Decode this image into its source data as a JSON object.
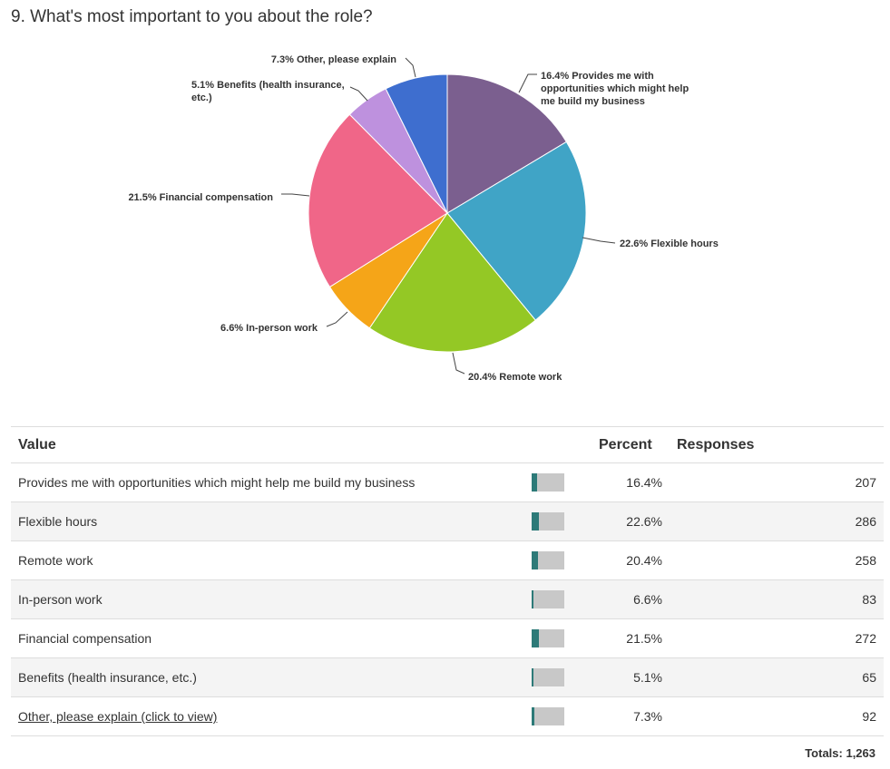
{
  "question": "9. What's most important to you about the role?",
  "chart_data": {
    "type": "pie",
    "slices": [
      {
        "name": "Provides me with opportunities which might help me build my business",
        "percent": 16.4,
        "label": [
          "16.4% Provides me with",
          "opportunities which might help",
          "me build my business"
        ],
        "color": "#7b5f8f"
      },
      {
        "name": "Flexible hours",
        "percent": 22.6,
        "label": [
          "22.6% Flexible hours"
        ],
        "color": "#40a4c6"
      },
      {
        "name": "Remote work",
        "percent": 20.4,
        "label": [
          "20.4% Remote work"
        ],
        "color": "#94c825"
      },
      {
        "name": "In-person work",
        "percent": 6.6,
        "label": [
          "6.6% In-person work"
        ],
        "color": "#f5a518"
      },
      {
        "name": "Financial compensation",
        "percent": 21.5,
        "label": [
          "21.5% Financial compensation"
        ],
        "color": "#f06688"
      },
      {
        "name": "Benefits (health insurance, etc.)",
        "percent": 5.1,
        "label": [
          "5.1% Benefits (health insurance,",
          "etc.)"
        ],
        "color": "#be91de"
      },
      {
        "name": "Other, please explain",
        "percent": 7.3,
        "label": [
          "7.3% Other, please explain"
        ],
        "color": "#3e6ecf"
      }
    ]
  },
  "table": {
    "headers": {
      "value": "Value",
      "percent": "Percent",
      "responses": "Responses"
    },
    "rows": [
      {
        "value": "Provides me with opportunities which might help me build my business",
        "percent": "16.4%",
        "fraction": 0.164,
        "responses": "207",
        "link": false
      },
      {
        "value": "Flexible hours",
        "percent": "22.6%",
        "fraction": 0.226,
        "responses": "286",
        "link": false
      },
      {
        "value": "Remote work",
        "percent": "20.4%",
        "fraction": 0.204,
        "responses": "258",
        "link": false
      },
      {
        "value": "In-person work",
        "percent": "6.6%",
        "fraction": 0.066,
        "responses": "83",
        "link": false
      },
      {
        "value": "Financial compensation",
        "percent": "21.5%",
        "fraction": 0.215,
        "responses": "272",
        "link": false
      },
      {
        "value": "Benefits (health insurance, etc.)",
        "percent": "5.1%",
        "fraction": 0.051,
        "responses": "65",
        "link": false
      },
      {
        "value": "Other, please explain (click to view)",
        "percent": "7.3%",
        "fraction": 0.073,
        "responses": "92",
        "link": true
      }
    ],
    "totals": "Totals: 1,263"
  }
}
